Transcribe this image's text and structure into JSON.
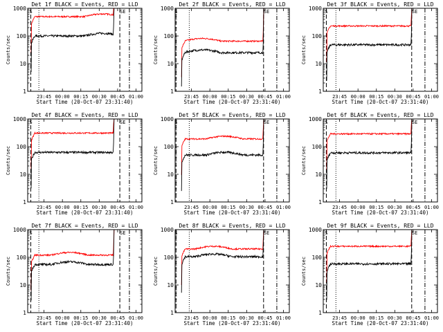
{
  "colors": {
    "events": "#000000",
    "lld": "#ff0000",
    "axes": "#000000",
    "background": "#ffffff"
  },
  "chart_data": {
    "type": "line",
    "ylabel": "Counts/sec",
    "xlabel": "Start Time (20-Oct-07 23:31:40)",
    "ylim": [
      1,
      1000
    ],
    "yscale": "log",
    "ytick_labels": [
      "1",
      "10",
      "100",
      "1000"
    ],
    "xtick_labels": [
      "23:45",
      "00:00",
      "00:15",
      "00:30",
      "00:45",
      "01:00"
    ],
    "saa_labels": [
      "S",
      "SE"
    ],
    "panels": [
      {
        "title": "Det 1f BLACK = Events, RED = LLD",
        "xticks": [
          23.75,
          24.0,
          24.25,
          24.5,
          24.75,
          25.0
        ],
        "xrange": [
          23.528,
          25.08
        ],
        "events_level": 100,
        "lld_level": 500,
        "bump_at": 24.55,
        "start": 23.58,
        "end": 24.69,
        "dot": 23.68,
        "d1": 23.57,
        "d2": 24.78,
        "dd": 24.91
      },
      {
        "title": "Det 2f BLACK = Events, RED = LLD",
        "xticks": [
          23.75,
          24.0,
          24.25,
          24.5,
          24.75,
          25.0
        ],
        "xrange": [
          23.528,
          25.08
        ],
        "events_level": 25,
        "lld_level": 65,
        "bump_at": 23.9,
        "start": 23.62,
        "end": 24.72,
        "dot": 23.72,
        "d1": 23.54,
        "d2": 24.73,
        "dd": 24.91
      },
      {
        "title": "Det 3f BLACK = Events, RED = LLD",
        "xticks": [
          23.75,
          24.0,
          24.25,
          24.5,
          24.75,
          25.0
        ],
        "xrange": [
          23.528,
          25.08
        ],
        "events_level": 48,
        "lld_level": 230,
        "bump_at": 0,
        "start": 23.58,
        "end": 24.72,
        "dot": 23.7,
        "d1": 23.57,
        "d2": 24.73,
        "dd": 24.91
      },
      {
        "title": "Det 4f BLACK = Events, RED = LLD",
        "xticks": [
          23.75,
          24.0,
          24.25,
          24.5,
          24.75,
          25.0
        ],
        "xrange": [
          23.528,
          25.08
        ],
        "events_level": 62,
        "lld_level": 310,
        "bump_at": 0,
        "start": 23.58,
        "end": 24.69,
        "dot": 23.68,
        "d1": 23.57,
        "d2": 24.78,
        "dd": 24.91
      },
      {
        "title": "Det 5f BLACK = Events, RED = LLD",
        "xticks": [
          23.75,
          24.0,
          24.25,
          24.5,
          24.75,
          25.0
        ],
        "xrange": [
          23.528,
          25.08
        ],
        "events_level": 50,
        "lld_level": 190,
        "bump_at": 24.2,
        "start": 23.62,
        "end": 24.72,
        "dot": 23.72,
        "d1": 23.54,
        "d2": 24.73,
        "dd": 24.91
      },
      {
        "title": "Det 6f BLACK = Events, RED = LLD",
        "xticks": [
          23.75,
          24.0,
          24.25,
          24.5,
          24.75,
          25.0
        ],
        "xrange": [
          23.528,
          25.08
        ],
        "events_level": 60,
        "lld_level": 290,
        "bump_at": 0,
        "start": 23.58,
        "end": 24.72,
        "dot": 23.7,
        "d1": 23.57,
        "d2": 24.73,
        "dd": 24.91
      },
      {
        "title": "Det 7f BLACK = Events, RED = LLD",
        "xticks": [
          23.75,
          24.0,
          24.25,
          24.5,
          24.75,
          25.0
        ],
        "xrange": [
          23.528,
          25.08
        ],
        "events_level": 55,
        "lld_level": 120,
        "bump_at": 24.1,
        "start": 23.58,
        "end": 24.69,
        "dot": 23.68,
        "d1": 23.57,
        "d2": 24.78,
        "dd": 24.91
      },
      {
        "title": "Det 8f BLACK = Events, RED = LLD",
        "xticks": [
          23.75,
          24.0,
          24.25,
          24.5,
          24.75,
          25.0
        ],
        "xrange": [
          23.528,
          25.08
        ],
        "events_level": 105,
        "lld_level": 200,
        "bump_at": 24.05,
        "start": 23.62,
        "end": 24.72,
        "dot": 23.72,
        "d1": 23.54,
        "d2": 24.73,
        "dd": 24.91
      },
      {
        "title": "Det 9f BLACK = Events, RED = LLD",
        "xticks": [
          23.75,
          24.0,
          24.25,
          24.5,
          24.75,
          25.0
        ],
        "xrange": [
          23.528,
          25.08
        ],
        "events_level": 58,
        "lld_level": 250,
        "bump_at": 0,
        "start": 23.58,
        "end": 24.72,
        "dot": 23.7,
        "d1": 23.57,
        "d2": 24.73,
        "dd": 24.91
      }
    ]
  }
}
